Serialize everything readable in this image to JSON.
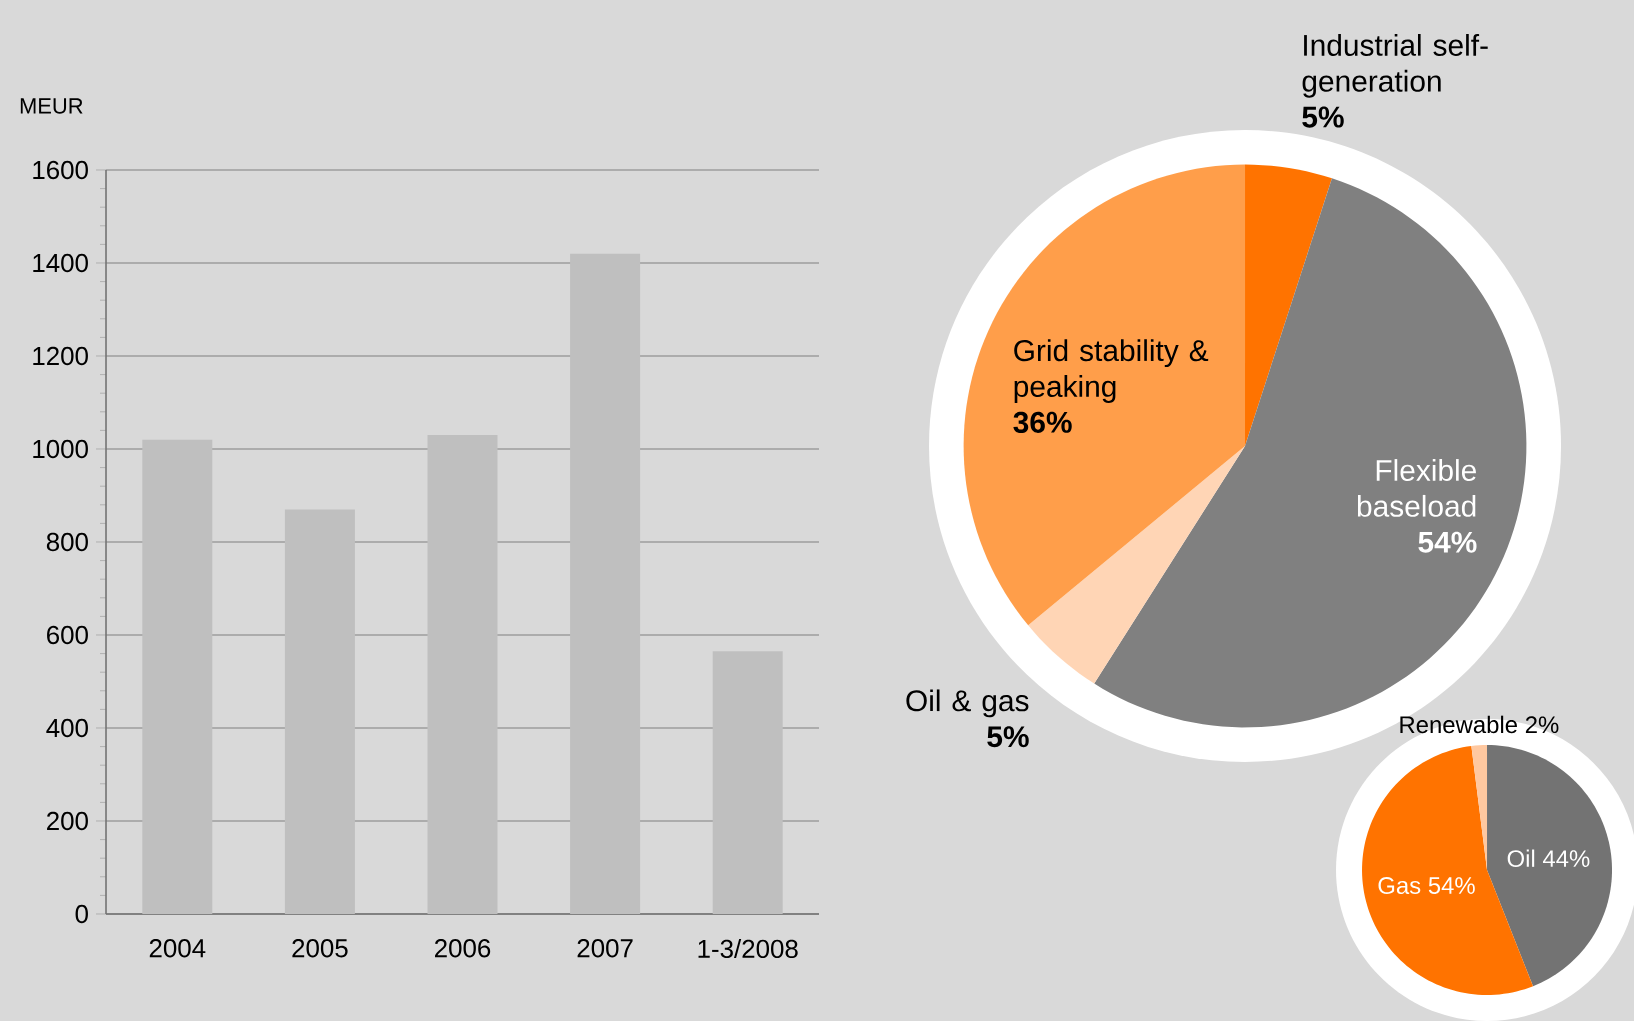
{
  "chart_data": [
    {
      "type": "bar",
      "ylabel": "MEUR",
      "categories": [
        "2004",
        "2005",
        "2006",
        "2007",
        "1-3/2008"
      ],
      "values": [
        1020,
        870,
        1030,
        1420,
        565
      ],
      "color": "#bfbfbf",
      "ylim": [
        0,
        1600
      ],
      "yticks": [
        0,
        200,
        400,
        600,
        800,
        1000,
        1200,
        1400,
        1600
      ],
      "grid": "y"
    },
    {
      "type": "pie",
      "categories": [
        "Industrial self-generation",
        "Flexible baseload",
        "Oil & gas",
        "Grid stability & peaking"
      ],
      "values": [
        5,
        54,
        5,
        36
      ],
      "value_labels": [
        "5%",
        "54%",
        "5%",
        "36%"
      ],
      "colors": [
        "#ff7300",
        "#808080",
        "#ffd5b5",
        "#ff9e4a"
      ]
    },
    {
      "type": "pie",
      "categories": [
        "Oil",
        "Gas",
        "Renewable"
      ],
      "values": [
        44,
        54,
        2
      ],
      "value_labels": [
        "44%",
        "54%",
        "2%"
      ],
      "colors": [
        "#737373",
        "#ff7300",
        "#ffc8a0"
      ]
    }
  ]
}
